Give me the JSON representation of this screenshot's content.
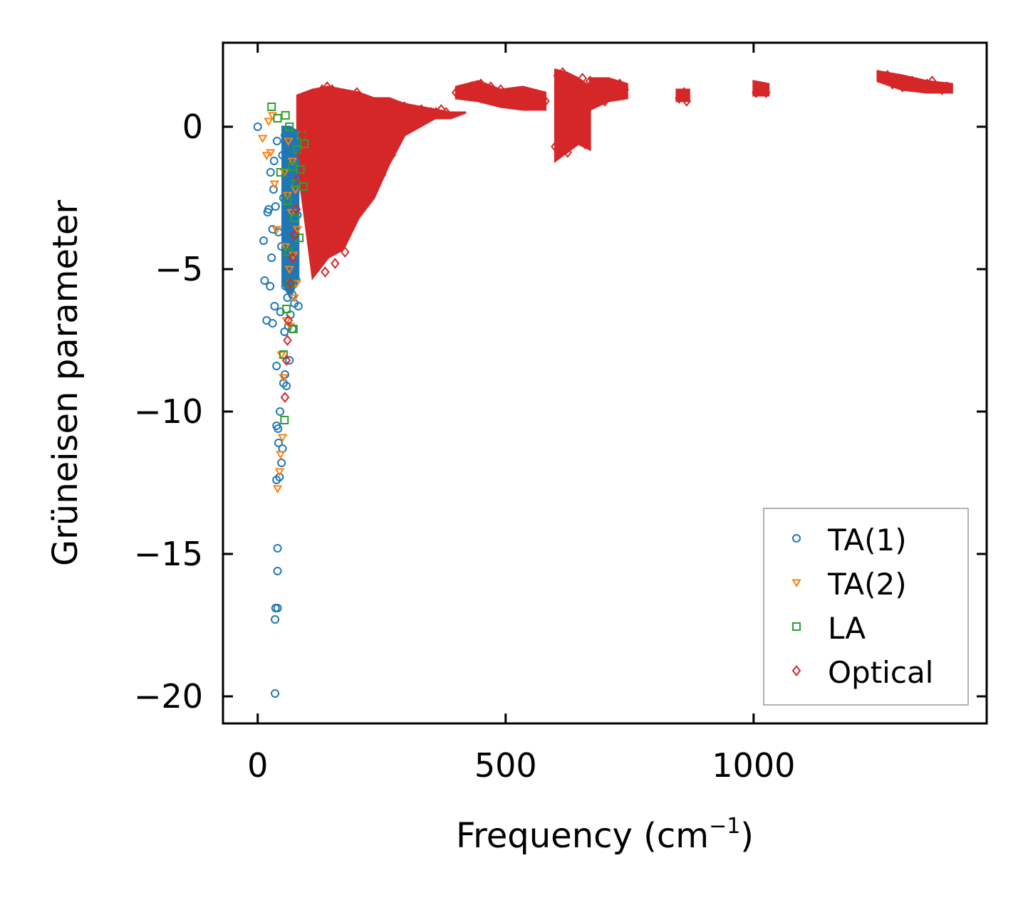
{
  "chart_data": {
    "type": "scatter",
    "title": "",
    "xlabel": "Frequency (cm",
    "xlabel_sup": "−1",
    "xlabel_close": ")",
    "ylabel": "Grüneisen parameter",
    "xlim": [
      -70,
      1470
    ],
    "ylim": [
      -20.95,
      2.95
    ],
    "xticks": [
      0,
      500,
      1000
    ],
    "xtick_labels": [
      "0",
      "500",
      "1000"
    ],
    "yticks": [
      0,
      -5,
      -10,
      -15,
      -20
    ],
    "ytick_labels": [
      "0",
      "−5",
      "−10",
      "−15",
      "−20"
    ],
    "grid": false,
    "legend_position": "bottom-right",
    "series": [
      {
        "name": "TA(1)",
        "marker": "circle",
        "color": "#1f77b4",
        "x": [
          0,
          12,
          14,
          18,
          20,
          22,
          25,
          26,
          28,
          30,
          30,
          32,
          33,
          34,
          35,
          35,
          36,
          36,
          38,
          38,
          38,
          39,
          40,
          40,
          40,
          41,
          42,
          42,
          44,
          45,
          46,
          48,
          48,
          50,
          50,
          52,
          52,
          54,
          55,
          55,
          56,
          58,
          58,
          60,
          60,
          60,
          62,
          62,
          64,
          64,
          65,
          66,
          66,
          68,
          68,
          70,
          70,
          70,
          72,
          72,
          74,
          75,
          76,
          78,
          80,
          82
        ],
        "y": [
          0,
          -4.0,
          -5.4,
          -6.8,
          -3.0,
          -2.9,
          -5.6,
          -1.6,
          -4.6,
          -3.6,
          -6.9,
          -2.2,
          -1.2,
          -6.3,
          -17.3,
          -19.9,
          -16.9,
          -2.8,
          -12.4,
          -8.4,
          -10.5,
          -0.5,
          -14.8,
          -15.6,
          -16.9,
          -10.6,
          -11.1,
          -3.7,
          -12.3,
          -10.0,
          -6.5,
          -11.8,
          -4.2,
          -11.3,
          -1.0,
          -9.0,
          -2.5,
          -7.2,
          -0.3,
          -8.7,
          -5.6,
          -3.2,
          -9.1,
          -6.0,
          -1.8,
          -4.4,
          -7.0,
          -2.9,
          -8.2,
          -0.8,
          -5.0,
          -6.6,
          -3.4,
          -1.4,
          -4.9,
          -7.1,
          -2.1,
          -5.9,
          -0.6,
          -3.8,
          -6.2,
          -4.6,
          -1.9,
          -5.4,
          -3.1,
          -6.3
        ]
      },
      {
        "name": "TA(2)",
        "marker": "triangle-down",
        "color": "#ff7f0e",
        "x": [
          10,
          18,
          22,
          26,
          30,
          34,
          38,
          40,
          44,
          46,
          48,
          50,
          52,
          54,
          56,
          58,
          60,
          62,
          64,
          66,
          68,
          70,
          72,
          74,
          76,
          78,
          80
        ],
        "y": [
          -0.4,
          -1.0,
          0.2,
          -0.9,
          0.4,
          -2.0,
          -3.6,
          -12.7,
          -12.1,
          -11.5,
          -8.0,
          -10.9,
          -8.8,
          -1.6,
          -4.2,
          -6.8,
          -2.4,
          -0.5,
          -5.0,
          -7.0,
          -3.0,
          -1.2,
          -4.5,
          -6.0,
          -2.2,
          -5.5,
          -3.6
        ]
      },
      {
        "name": "LA",
        "marker": "square",
        "color": "#2ca02c",
        "x": [
          28,
          40,
          46,
          52,
          54,
          56,
          58,
          60,
          62,
          64,
          66,
          70,
          72,
          74,
          78,
          80,
          84,
          86,
          88,
          92,
          94
        ],
        "y": [
          0.7,
          0.3,
          -1.6,
          -8.0,
          -10.3,
          0.4,
          -6.4,
          -2.6,
          -4.4,
          0.0,
          -5.5,
          -1.4,
          -7.1,
          -3.2,
          -2.0,
          -0.8,
          -3.9,
          -1.5,
          -0.3,
          -2.1,
          -0.6
        ]
      },
      {
        "name": "Optical",
        "marker": "diamond",
        "color": "#d62728",
        "x": [
          55,
          58,
          60,
          62,
          66,
          70,
          74,
          78,
          82,
          86,
          90,
          96,
          100,
          106,
          110,
          116,
          120,
          126,
          130,
          136,
          140,
          146,
          150,
          156,
          160,
          166,
          170,
          176,
          180,
          186,
          190,
          196,
          200,
          206,
          210,
          216,
          220,
          226,
          230,
          236,
          240,
          246,
          250,
          256,
          260,
          266,
          270,
          276,
          280,
          286,
          290,
          296,
          300,
          310,
          320,
          330,
          340,
          350,
          360,
          370,
          380,
          400,
          410,
          420,
          430,
          440,
          450,
          460,
          470,
          480,
          490,
          500,
          510,
          520,
          530,
          540,
          550,
          560,
          570,
          580,
          600,
          605,
          610,
          615,
          620,
          625,
          630,
          635,
          640,
          645,
          650,
          655,
          660,
          665,
          670,
          680,
          690,
          700,
          710,
          720,
          730,
          740,
          850,
          855,
          860,
          865,
          1005,
          1010,
          1015,
          1020,
          1025,
          1260,
          1270,
          1280,
          1290,
          1300,
          1310,
          1320,
          1330,
          1340,
          1350,
          1360,
          1370,
          1380,
          1390
        ],
        "y": [
          -9.5,
          -8.2,
          -7.5,
          -6.8,
          -5.5,
          -4.6,
          -3.8,
          -2.9,
          -1.8,
          -1.0,
          -0.3,
          0.3,
          0.6,
          -1.6,
          0.9,
          -4.7,
          1.1,
          -3.2,
          1.3,
          -5.1,
          1.4,
          -2.8,
          1.3,
          -4.8,
          1.2,
          -3.6,
          1.1,
          -4.4,
          1.0,
          -2.6,
          0.8,
          -3.0,
          1.2,
          -1.5,
          -2.9,
          0.3,
          -1.9,
          -0.4,
          -2.4,
          0.1,
          -1.2,
          -0.8,
          -1.7,
          0.4,
          -0.6,
          0.2,
          -1.0,
          0.5,
          -0.3,
          0.6,
          0.0,
          0.7,
          0.2,
          0.5,
          0.3,
          0.6,
          0.4,
          0.5,
          0.5,
          0.6,
          0.5,
          1.2,
          1.3,
          1.2,
          1.4,
          1.3,
          1.5,
          1.2,
          1.4,
          1.1,
          1.3,
          1.0,
          1.1,
          0.9,
          1.0,
          0.8,
          0.9,
          1.0,
          0.8,
          0.9,
          -0.7,
          1.8,
          -0.5,
          1.9,
          0.9,
          -0.9,
          1.5,
          -0.4,
          1.2,
          0.5,
          -0.2,
          1.7,
          -0.6,
          0.8,
          1.6,
          1.3,
          1.5,
          0.9,
          1.4,
          1.2,
          1.5,
          1.3,
          1.0,
          1.1,
          1.2,
          0.9,
          1.2,
          1.3,
          1.4,
          1.3,
          1.2,
          1.7,
          1.8,
          1.5,
          1.6,
          1.4,
          1.5,
          1.6,
          1.5,
          1.4,
          1.5,
          1.6,
          1.4,
          1.3,
          1.4
        ]
      }
    ],
    "dense_regions": [
      {
        "series": "Optical",
        "color": "#d62728",
        "x_data": [
          80,
          420
        ],
        "y_top": [
          1.1,
          1.3,
          1.4,
          1.3,
          1.2,
          1.0,
          1.0,
          0.8,
          0.7,
          0.6,
          0.5,
          0.5
        ],
        "y_bottom": [
          -1.2,
          -5.3,
          -4.6,
          -4.3,
          -3.2,
          -2.5,
          -1.3,
          -0.3,
          0.0,
          0.3,
          0.3,
          0.5
        ]
      },
      {
        "series": "Optical",
        "color": "#d62728",
        "x_data": [
          400,
          580
        ],
        "y_top": [
          1.4,
          1.6,
          1.3,
          1.4,
          1.2
        ],
        "y_bottom": [
          1.0,
          0.9,
          0.7,
          0.6,
          0.6
        ]
      },
      {
        "series": "Optical",
        "color": "#d62728",
        "x_data": [
          600,
          670
        ],
        "y_top": [
          2.0,
          1.9,
          1.7,
          1.4
        ],
        "y_bottom": [
          -1.2,
          -0.9,
          -0.6,
          -0.8
        ]
      },
      {
        "series": "Optical",
        "color": "#d62728",
        "x_data": [
          670,
          745
        ],
        "y_top": [
          1.7,
          1.7,
          1.5
        ],
        "y_bottom": [
          0.6,
          0.9,
          1.0
        ]
      },
      {
        "series": "Optical",
        "color": "#d62728",
        "x_data": [
          845,
          870
        ],
        "y_top": [
          1.3,
          1.3
        ],
        "y_bottom": [
          0.9,
          0.9
        ]
      },
      {
        "series": "Optical",
        "color": "#d62728",
        "x_data": [
          1000,
          1030
        ],
        "y_top": [
          1.6,
          1.5
        ],
        "y_bottom": [
          1.1,
          1.1
        ]
      },
      {
        "series": "Optical",
        "color": "#d62728",
        "x_data": [
          1250,
          1400
        ],
        "y_top": [
          1.95,
          1.8,
          1.6,
          1.5
        ],
        "y_bottom": [
          1.6,
          1.3,
          1.2,
          1.2
        ]
      },
      {
        "series": "TA(1)",
        "color": "#1f77b4",
        "x_data": [
          50,
          82
        ],
        "y_top": [
          0.0,
          0.0,
          -0.2
        ],
        "y_bottom": [
          -5.5,
          -6.0,
          -5.3
        ]
      }
    ]
  }
}
